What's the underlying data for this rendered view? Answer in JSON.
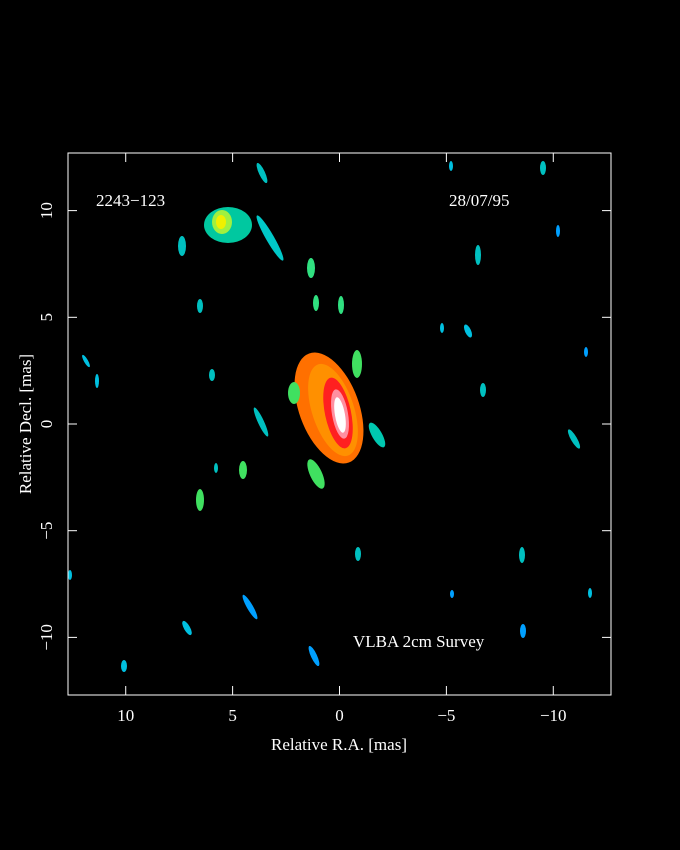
{
  "chart_data": {
    "type": "image",
    "annotations": [
      "2243−123",
      "28/07/95",
      "VLBA 2cm Survey"
    ],
    "x_label": "Relative R.A. [mas]",
    "y_label": "Relative Decl. [mas]",
    "xlim": [
      12.7,
      -12.7
    ],
    "ylim": [
      -12.7,
      12.7
    ],
    "xticks": [
      10,
      5,
      0,
      {
        "value": -5,
        "label": "−5"
      },
      {
        "value": -10,
        "label": "−10"
      }
    ],
    "yticks": [
      {
        "value": -10,
        "label": "−10"
      },
      {
        "value": -5,
        "label": "−5"
      },
      0,
      5,
      10
    ],
    "frame_color": "#ffffff"
  }
}
